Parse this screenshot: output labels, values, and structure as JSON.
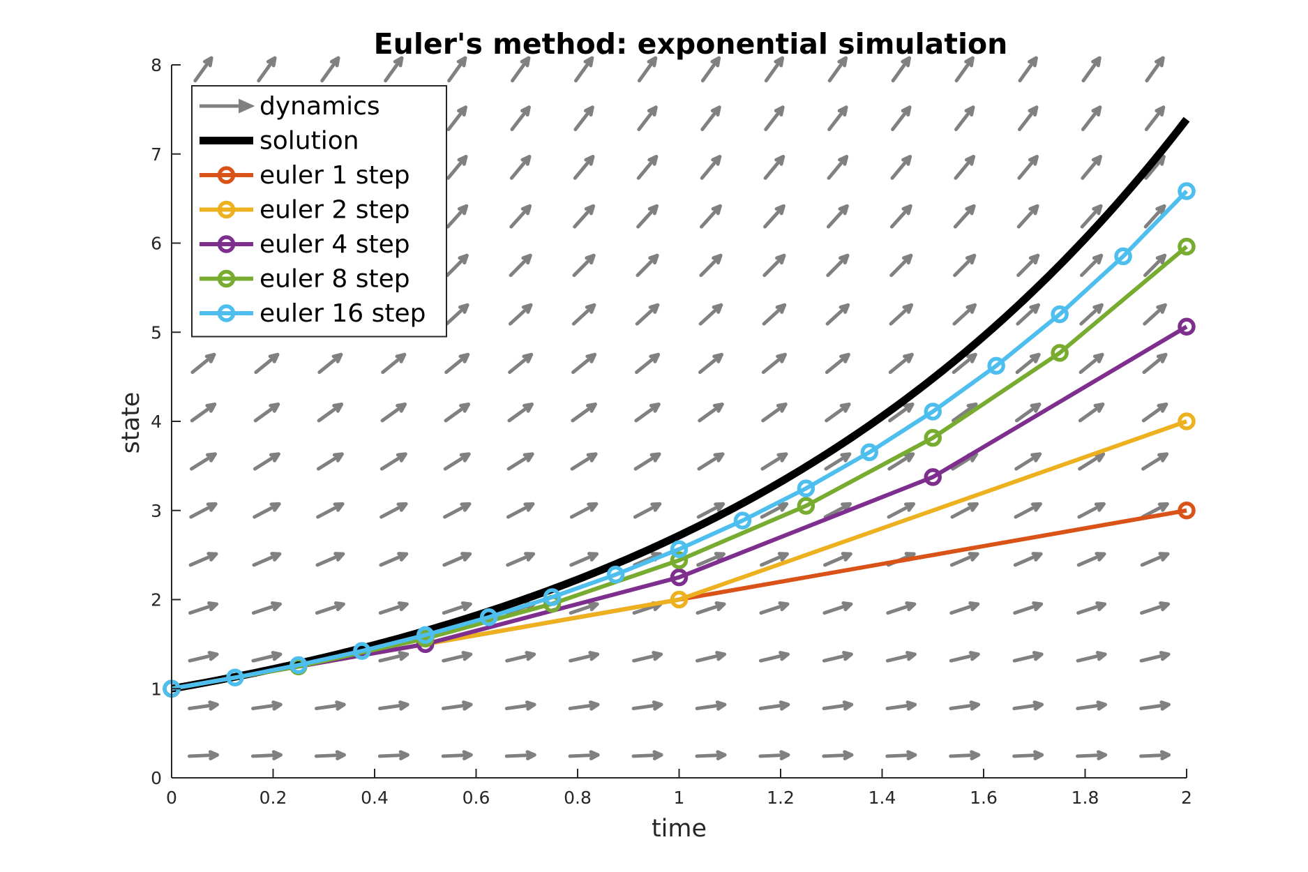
{
  "chart_data": {
    "type": "line",
    "title": "Euler's method:  exponential simulation",
    "xlabel": "time",
    "ylabel": "state",
    "xlim": [
      0,
      2
    ],
    "ylim": [
      0,
      8
    ],
    "xticks": [
      0,
      0.2,
      0.4,
      0.6,
      0.8,
      1,
      1.2,
      1.4,
      1.6,
      1.8,
      2
    ],
    "yticks": [
      0,
      1,
      2,
      3,
      4,
      5,
      6,
      7,
      8
    ],
    "xtick_labels": [
      "0",
      "0.2",
      "0.4",
      "0.6",
      "0.8",
      "1",
      "1.2",
      "1.4",
      "1.6",
      "1.8",
      "2"
    ],
    "ytick_labels": [
      "0",
      "1",
      "2",
      "3",
      "4",
      "5",
      "6",
      "7",
      "8"
    ],
    "grid": false,
    "legend_position": "top-left",
    "dynamics": {
      "name": "dynamics",
      "color": "#808080",
      "t": [
        0.0625,
        0.1875,
        0.3125,
        0.4375,
        0.5625,
        0.6875,
        0.8125,
        0.9375,
        1.0625,
        1.1875,
        1.3125,
        1.4375,
        1.5625,
        1.6875,
        1.8125,
        1.9375
      ],
      "x": [
        0.25,
        0.8,
        1.35,
        1.9,
        2.45,
        3.0,
        3.55,
        4.1,
        4.65,
        5.2,
        5.75,
        6.3,
        6.85,
        7.4,
        7.95
      ]
    },
    "series": [
      {
        "name": "solution",
        "color": "#000000",
        "kind": "curve",
        "function": "exp",
        "t0": 0,
        "t1": 2
      },
      {
        "name": "euler 1 step",
        "color": "#D95319",
        "x": [
          0,
          2
        ],
        "y": [
          1,
          3
        ]
      },
      {
        "name": "euler 2 step",
        "color": "#EDB120",
        "x": [
          0,
          1,
          2
        ],
        "y": [
          1,
          2,
          4
        ]
      },
      {
        "name": "euler 4 step",
        "color": "#7E2F8E",
        "x": [
          0,
          0.5,
          1,
          1.5,
          2
        ],
        "y": [
          1,
          1.5,
          2.25,
          3.375,
          5.0625
        ]
      },
      {
        "name": "euler 8 step",
        "color": "#77AC30",
        "x": [
          0,
          0.25,
          0.5,
          0.75,
          1,
          1.25,
          1.5,
          1.75,
          2
        ],
        "y": [
          1,
          1.25,
          1.5625,
          1.9531,
          2.4414,
          3.0518,
          3.8147,
          4.7684,
          5.9605
        ]
      },
      {
        "name": "euler 16 step",
        "color": "#4DBEEE",
        "x": [
          0,
          0.125,
          0.25,
          0.375,
          0.5,
          0.625,
          0.75,
          0.875,
          1,
          1.125,
          1.25,
          1.375,
          1.5,
          1.625,
          1.75,
          1.875,
          2
        ],
        "y": [
          1,
          1.125,
          1.2656,
          1.4238,
          1.6018,
          1.802,
          2.0273,
          2.2807,
          2.5658,
          2.8865,
          3.2473,
          3.6532,
          4.1099,
          4.6236,
          5.2016,
          5.8518,
          6.5833
        ]
      }
    ]
  }
}
